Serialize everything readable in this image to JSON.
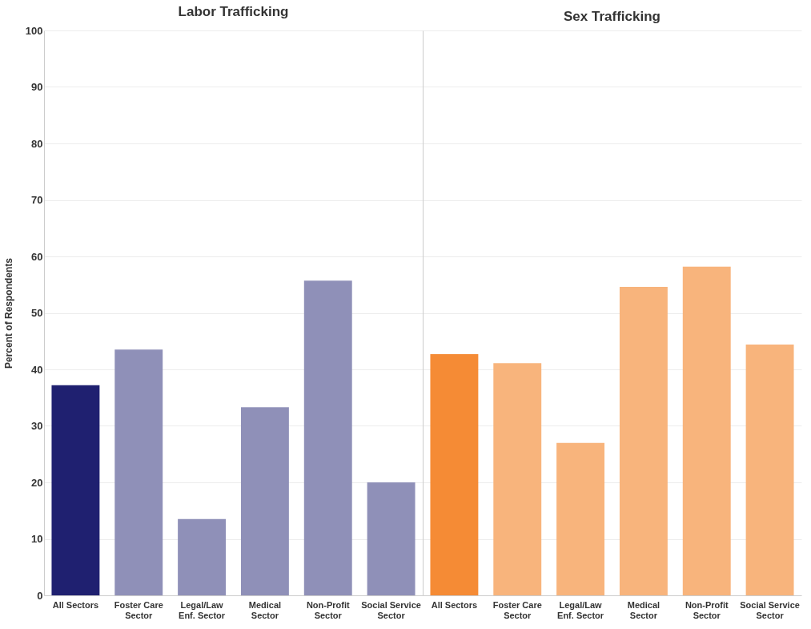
{
  "chart_data": [
    {
      "type": "bar",
      "title": "Labor Trafficking",
      "ylabel": "Percent of Respondents",
      "categories": [
        "All Sectors",
        "Foster Care Sector",
        "Legal/Law Enf. Sector",
        "Medical Sector",
        "Non-Profit Sector",
        "Social Service Sector"
      ],
      "values": [
        37.2,
        43.5,
        13.5,
        33.3,
        55.7,
        20.0
      ],
      "colors": [
        "#1f2070",
        "#8f90b8",
        "#8f90b8",
        "#8f90b8",
        "#8f90b8",
        "#8f90b8"
      ],
      "ylim": [
        0,
        100
      ],
      "yticks": [
        0,
        10,
        20,
        30,
        40,
        50,
        60,
        70,
        80,
        90,
        100
      ],
      "grid": "y"
    },
    {
      "type": "bar",
      "title": "Sex Trafficking",
      "categories": [
        "All Sectors",
        "Foster Care Sector",
        "Legal/Law Enf. Sector",
        "Medical Sector",
        "Non-Profit Sector",
        "Social Service Sector"
      ],
      "values": [
        42.7,
        41.1,
        27.0,
        54.6,
        58.2,
        44.4
      ],
      "colors": [
        "#f58b35",
        "#f8b47c",
        "#f8b47c",
        "#f8b47c",
        "#f8b47c",
        "#f8b47c"
      ],
      "ylim": [
        0,
        100
      ],
      "yticks": [
        0,
        10,
        20,
        30,
        40,
        50,
        60,
        70,
        80,
        90,
        100
      ],
      "grid": "y",
      "tick_labels": "x"
    }
  ]
}
